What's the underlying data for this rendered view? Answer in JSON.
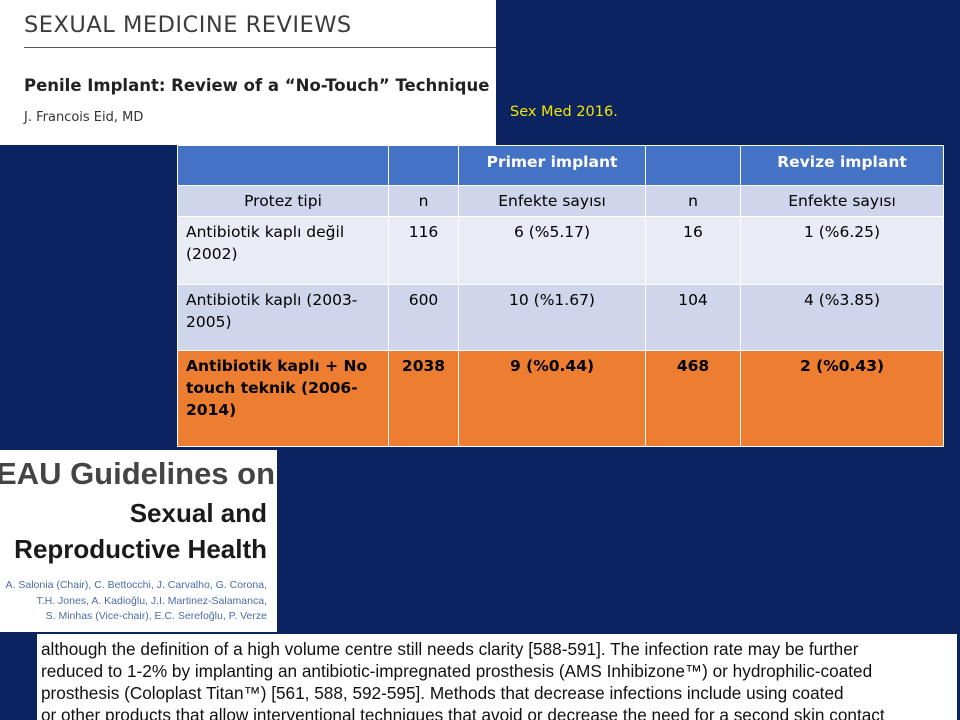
{
  "journal": {
    "name": "SEXUAL MEDICINE REVIEWS",
    "article_title": "Penile Implant: Review of a “No-Touch” Technique",
    "author": "J. Francois Eid, MD"
  },
  "citation": "Sex Med 2016.",
  "table": {
    "header": [
      "",
      "",
      "Primer implant",
      "",
      "Revize implant"
    ],
    "subheader": [
      "Protez tipi",
      "n",
      "Enfekte sayısı",
      "n",
      "Enfekte sayısı"
    ],
    "rows": [
      {
        "type": "Antibiotik kaplı değil (2002)",
        "n1": "116",
        "inf1": "6 (%5.17)",
        "n2": "16",
        "inf2": "1 (%6.25)"
      },
      {
        "type": "Antibiotik kaplı (2003-2005)",
        "n1": "600",
        "inf1": "10 (%1.67)",
        "n2": "104",
        "inf2": "4 (%3.85)"
      },
      {
        "type": "Antibiotik kaplı + No touch teknik (2006-2014)",
        "n1": "2038",
        "inf1": "9 (%0.44)",
        "n2": "468",
        "inf2": "2 (%0.43)"
      }
    ]
  },
  "eau": {
    "title": "EAU Guidelines on",
    "subtitle_line1": "Sexual and",
    "subtitle_line2": "Reproductive Health",
    "authors": [
      "A. Salonia (Chair), C. Bettocchi, J. Carvalho, G. Corona,",
      "T.H. Jones, A. Kadioğlu, J.I. Martinez-Salamanca,",
      "S. Minhas (Vice-chair), E.C. Serefoğlu, P. Verze"
    ]
  },
  "excerpt": {
    "lines": [
      "although the definition of a high volume centre still needs clarity [588-591]. The infection rate may be further",
      "reduced to 1-2% by implanting an antibiotic-impregnated prosthesis (AMS Inhibizone™) or hydrophilic-coated",
      "prosthesis (Coloplast Titan™) [561, 588, 592-595]. Methods that decrease infections include using coated",
      "or other products that allow interventional techniques that avoid or decrease the need for a second skin contact"
    ]
  },
  "colors": {
    "background": "#0b2461",
    "table_header": "#4472c4",
    "highlight_row": "#ed7d31",
    "citation_text": "#f2e600"
  }
}
